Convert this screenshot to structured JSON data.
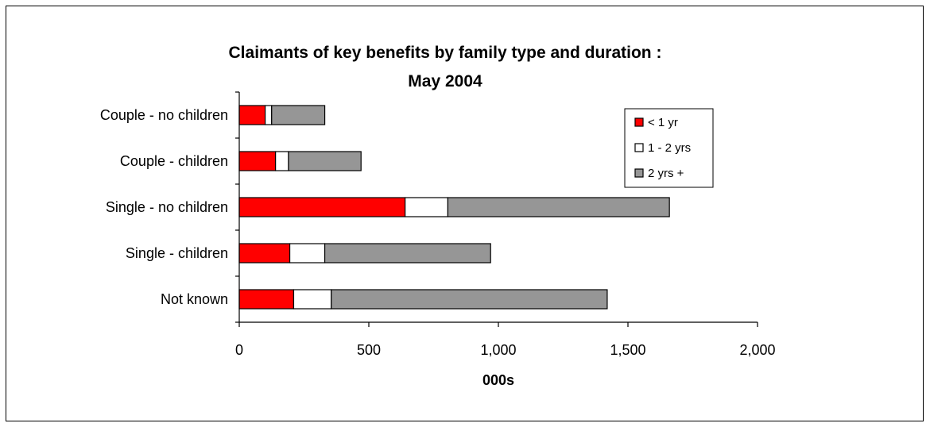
{
  "chart_data": {
    "type": "bar",
    "orientation": "horizontal",
    "stacked": true,
    "title": [
      "Claimants of key benefits by family type and duration :",
      "May 2004"
    ],
    "xlabel": "000s",
    "ylabel": "",
    "xlim": [
      0,
      2000
    ],
    "x_ticks": [
      0,
      500,
      1000,
      1500,
      2000
    ],
    "x_tick_labels": [
      "0",
      "500",
      "1,000",
      "1,500",
      "2,000"
    ],
    "grid": false,
    "legend_position": "top-right",
    "categories": [
      "Couple - no children",
      "Couple - children",
      "Single - no children",
      "Single - children",
      "Not known"
    ],
    "series": [
      {
        "name": "< 1 yr",
        "color": "#ff0000",
        "values": [
          100,
          140,
          640,
          195,
          210
        ]
      },
      {
        "name": "1 - 2 yrs",
        "color": "#ffffff",
        "values": [
          25,
          50,
          165,
          135,
          145
        ]
      },
      {
        "name": "2 yrs +",
        "color": "#969696",
        "values": [
          205,
          280,
          855,
          640,
          1065
        ]
      }
    ]
  }
}
